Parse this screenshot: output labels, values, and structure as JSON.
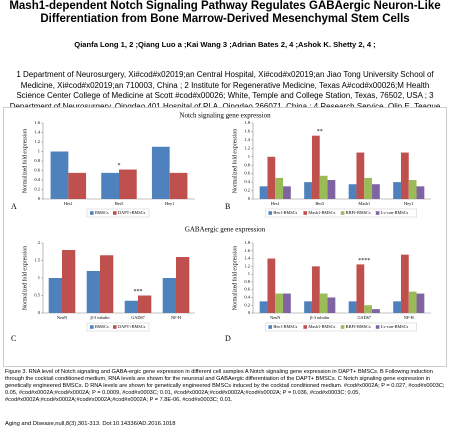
{
  "header": {
    "title": "Mash1-dependent Notch Signaling Pathway Regulates GABAergic Neuron-Like Differentiation from Bone Marrow-Derived Mesenchymal Stem Cells",
    "authors": "Qianfa Long 1, 2 ;Qiang Luo a ;Kai Wang 3 ;Adrian Bates 2, 4 ;Ashok K. Shetty 2, 4 ;",
    "affiliations": "1 Department of Neurosurgery, Xi#cod#x02019;an Central Hospital, Xi#cod#x02019;an Jiao Tong University School of Medicine, Xi#cod#x02019;an 710003, China ; 2 Institute for Regenerative Medicine, Texas A#cod#x00026;M Health Science Center College of Medicine at Scott #cod#x00026; White, Temple and College Station, Texas, 76502, USA ; 3 Department of Neurosurgery, Qingdao 401 Hospital of PLA, Qingdao 266071, China ; 4 Research Service, Olin E. Teague Veterans#cod#x02019; Medical Center, CTVHCS, Temple,"
  },
  "figure": {
    "section_titles": [
      "Notch signaling gene expression",
      "GABAergic gene expression"
    ]
  },
  "caption": "Figure 3.   RNA level of Notch signaling and GABA-ergic gene expression in different cell samples  A  Notch signaling gene expression in DAPT+ BMSCs. B  Following induction through the cocktail conditioned medium, RNA levels are shown for the neuronal and GABAergic differentiation of the DAPT+ BMSCs. C  Notch signaling gene expression in genetically engineered BMSCs. D  RNA levels are shown for genetically engineered BMSCs induced by the cocktail conditioned medium. #cod#x0002A;  P  = 0.027, #cod#x0003C; 0.05, #cod#x0002A;#cod#x0002A;  P  = 0.0009, #cod#x0003C; 0.01, #cod#x0002A;#cod#x0002A;#cod#x0002A;  P  = 0.036, #cod#x0003C; 0.05, #cod#x0002A;#cod#x0002A;#cod#x0002A;#cod#x0002A;  P  = 7.8E-06, #cod#x0003C; 0.01.",
  "citation": "Aging and Disease,null,8(3),301-313. Doi:10.14336/AD.2016.1018",
  "chart_data": [
    {
      "type": "bar",
      "label": "A",
      "ylabel": "Normalized fold expression",
      "categories": [
        "Hes1",
        "Hes5",
        "Hey1"
      ],
      "series": [
        {
          "name": "BMSCs",
          "color": "#4f81bd",
          "values": [
            1.0,
            0.55,
            1.1
          ]
        },
        {
          "name": "DAPT+BMSCs",
          "color": "#c0504d",
          "values": [
            0.55,
            0.62,
            0.55
          ]
        }
      ],
      "ylim": [
        0,
        1.6
      ],
      "yticks": [
        0,
        0.2,
        0.4,
        0.6,
        0.8,
        1,
        1.2,
        1.4,
        1.6
      ],
      "annotation": {
        "text": "*",
        "category": "Hes5"
      }
    },
    {
      "type": "bar",
      "label": "B",
      "ylabel": "Normalized fold expression",
      "categories": [
        "Hes1",
        "Hes5",
        "Mash1",
        "Hey1"
      ],
      "series": [
        {
          "name": "Hes1-BMSCs",
          "color": "#4f81bd",
          "values": [
            0.3,
            0.4,
            0.35,
            0.4
          ]
        },
        {
          "name": "Mash1-BMSCs",
          "color": "#c0504d",
          "values": [
            1.0,
            1.5,
            1.1,
            1.1
          ]
        },
        {
          "name": "RBPJ-BMSCs",
          "color": "#9bbb59",
          "values": [
            0.5,
            0.55,
            0.5,
            0.45
          ]
        },
        {
          "name": "Lv-con-BMSCs",
          "color": "#8064a2",
          "values": [
            0.3,
            0.45,
            0.35,
            0.3
          ]
        }
      ],
      "ylim": [
        0,
        1.8
      ],
      "yticks": [
        0,
        0.2,
        0.4,
        0.6,
        0.8,
        1,
        1.2,
        1.4,
        1.6,
        1.8
      ],
      "annotation": {
        "text": "**",
        "category": "Hes5"
      }
    },
    {
      "type": "bar",
      "label": "C",
      "ylabel": "Normalized fold expression",
      "categories": [
        "NeuN",
        "β-3 tubulin",
        "GAD67",
        "NF-H"
      ],
      "series": [
        {
          "name": "BMSCs",
          "color": "#4f81bd",
          "values": [
            1.0,
            1.2,
            0.35,
            1.0
          ]
        },
        {
          "name": "DAPT+BMSCs",
          "color": "#c0504d",
          "values": [
            1.8,
            1.65,
            0.5,
            1.6
          ]
        }
      ],
      "ylim": [
        0,
        2
      ],
      "yticks": [
        0,
        0.5,
        1,
        1.5,
        2
      ],
      "annotation": {
        "text": "***",
        "category": "GAD67"
      }
    },
    {
      "type": "bar",
      "label": "D",
      "ylabel": "Normalized fold expression",
      "categories": [
        "NeuN",
        "β-3 tubulin",
        "GAD67",
        "NF-H"
      ],
      "series": [
        {
          "name": "Hes1-BMSCs",
          "color": "#4f81bd",
          "values": [
            0.3,
            0.3,
            0.3,
            0.3
          ]
        },
        {
          "name": "Mash1-BMSCs",
          "color": "#c0504d",
          "values": [
            1.4,
            1.2,
            1.25,
            1.5
          ]
        },
        {
          "name": "RBPJ-BMSCs",
          "color": "#9bbb59",
          "values": [
            0.5,
            0.5,
            0.2,
            0.55
          ]
        },
        {
          "name": "Lv-con-BMSCs",
          "color": "#8064a2",
          "values": [
            0.5,
            0.4,
            0.1,
            0.5
          ]
        }
      ],
      "ylim": [
        0,
        1.8
      ],
      "yticks": [
        0,
        0.2,
        0.4,
        0.6,
        0.8,
        1,
        1.2,
        1.4,
        1.6,
        1.8
      ],
      "annotation": {
        "text": "****",
        "category": "GAD67"
      }
    }
  ]
}
